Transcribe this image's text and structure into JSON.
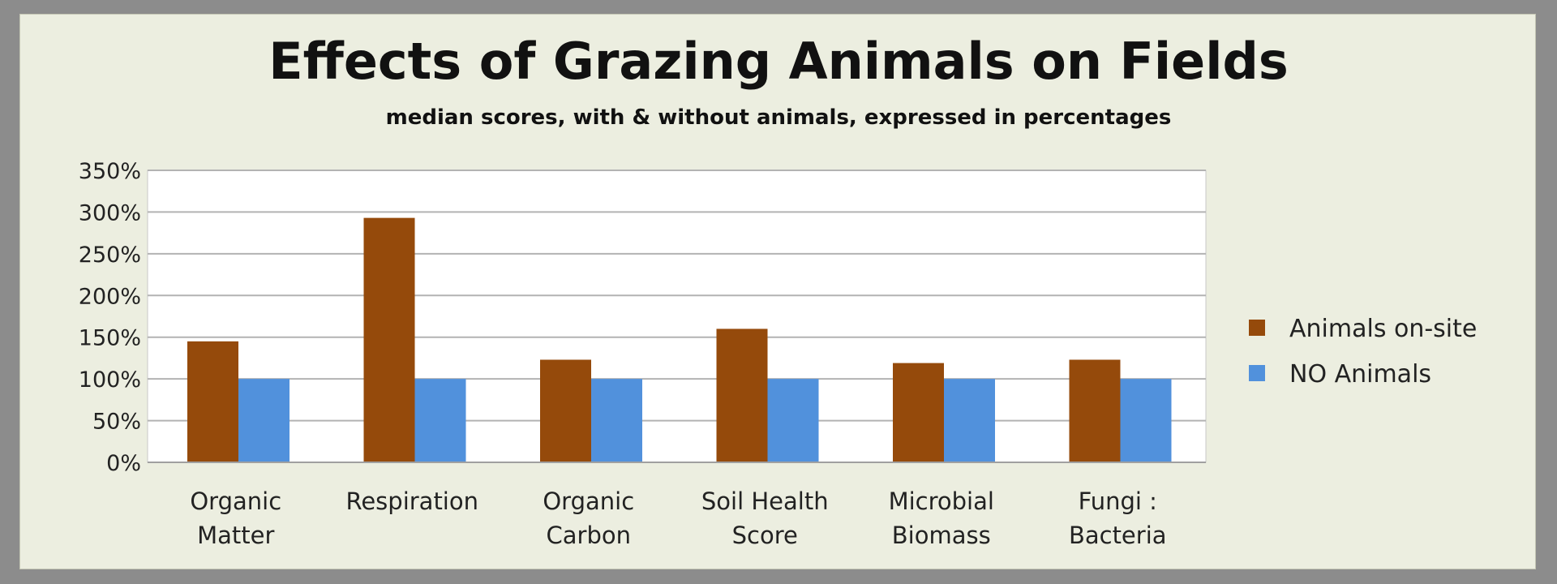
{
  "chart_data": {
    "type": "bar",
    "title": "Effects of Grazing Animals on Fields",
    "subtitle": "median scores, with & without animals,  expressed in percentages",
    "categories": [
      [
        "Organic",
        "Matter"
      ],
      [
        "Respiration"
      ],
      [
        "Organic",
        "Carbon"
      ],
      [
        "Soil Health",
        "Score"
      ],
      [
        "Microbial",
        "Biomass"
      ],
      [
        "Fungi :",
        "Bacteria"
      ]
    ],
    "series": [
      {
        "name": "Animals on-site",
        "color": "#954a0b",
        "values": [
          145,
          293,
          123,
          160,
          119,
          123
        ]
      },
      {
        "name": "NO Animals",
        "color": "#5191dc",
        "values": [
          100,
          100,
          100,
          100,
          100,
          100
        ]
      }
    ],
    "ylim": [
      0,
      350
    ],
    "yticks": [
      0,
      50,
      100,
      150,
      200,
      250,
      300,
      350
    ],
    "ytick_labels": [
      "0%",
      "50%",
      "100%",
      "150%",
      "200%",
      "250%",
      "300%",
      "350%"
    ],
    "grid": true,
    "legend_position": "right"
  }
}
